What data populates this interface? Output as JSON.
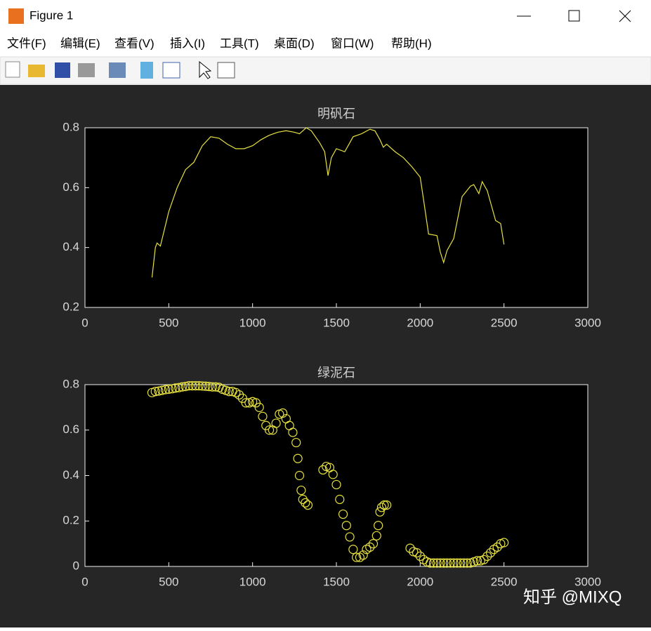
{
  "window": {
    "title": "Figure 1"
  },
  "menu": [
    "文件(F)",
    "编辑(E)",
    "查看(V)",
    "插入(I)",
    "工具(T)",
    "桌面(D)",
    "窗口(W)",
    "帮助(H)"
  ],
  "chart_data": [
    {
      "type": "line",
      "title": "明矾石",
      "color": "#e6e040",
      "grid": false,
      "xlim": [
        0,
        3000
      ],
      "xticks": [
        0,
        500,
        1000,
        1500,
        2000,
        2500,
        3000
      ],
      "ylim": [
        0.2,
        0.8
      ],
      "yticks": [
        0.2,
        0.4,
        0.6,
        0.8
      ],
      "x": [
        400,
        420,
        430,
        450,
        500,
        550,
        600,
        650,
        700,
        750,
        800,
        850,
        900,
        950,
        1000,
        1050,
        1100,
        1150,
        1200,
        1250,
        1280,
        1300,
        1320,
        1350,
        1400,
        1430,
        1450,
        1470,
        1500,
        1550,
        1600,
        1650,
        1700,
        1730,
        1760,
        1780,
        1800,
        1850,
        1900,
        1950,
        2000,
        2020,
        2050,
        2100,
        2120,
        2140,
        2160,
        2200,
        2250,
        2300,
        2320,
        2350,
        2370,
        2400,
        2450,
        2480,
        2500
      ],
      "values": [
        0.3,
        0.4,
        0.415,
        0.405,
        0.52,
        0.6,
        0.66,
        0.685,
        0.74,
        0.77,
        0.765,
        0.745,
        0.73,
        0.73,
        0.74,
        0.76,
        0.775,
        0.785,
        0.79,
        0.785,
        0.78,
        0.79,
        0.8,
        0.79,
        0.75,
        0.72,
        0.64,
        0.7,
        0.73,
        0.72,
        0.77,
        0.78,
        0.795,
        0.79,
        0.76,
        0.735,
        0.745,
        0.72,
        0.7,
        0.67,
        0.635,
        0.56,
        0.445,
        0.44,
        0.385,
        0.35,
        0.39,
        0.43,
        0.57,
        0.605,
        0.61,
        0.58,
        0.62,
        0.59,
        0.49,
        0.48,
        0.41
      ]
    },
    {
      "type": "scatter",
      "title": "绿泥石",
      "color": "#e6e040",
      "grid": false,
      "xlim": [
        0,
        3000
      ],
      "xticks": [
        0,
        500,
        1000,
        1500,
        2000,
        2500,
        3000
      ],
      "ylim": [
        0,
        0.8
      ],
      "yticks": [
        0,
        0.2,
        0.4,
        0.6,
        0.8
      ],
      "x": [
        400,
        420,
        440,
        460,
        480,
        500,
        520,
        540,
        560,
        580,
        600,
        620,
        640,
        660,
        680,
        700,
        720,
        740,
        760,
        780,
        800,
        820,
        840,
        860,
        880,
        900,
        920,
        940,
        960,
        980,
        1000,
        1020,
        1040,
        1060,
        1080,
        1100,
        1120,
        1140,
        1160,
        1180,
        1200,
        1220,
        1240,
        1260,
        1270,
        1280,
        1290,
        1300,
        1315,
        1330,
        1420,
        1440,
        1460,
        1480,
        1500,
        1520,
        1540,
        1560,
        1580,
        1600,
        1620,
        1640,
        1660,
        1680,
        1700,
        1720,
        1740,
        1750,
        1760,
        1770,
        1785,
        1800,
        1940,
        1960,
        1980,
        2000,
        2020,
        2040,
        2060,
        2080,
        2100,
        2120,
        2140,
        2160,
        2180,
        2200,
        2220,
        2240,
        2260,
        2280,
        2300,
        2320,
        2340,
        2360,
        2380,
        2400,
        2420,
        2440,
        2460,
        2480,
        2500
      ],
      "values": [
        0.765,
        0.77,
        0.772,
        0.775,
        0.778,
        0.78,
        0.782,
        0.785,
        0.787,
        0.79,
        0.792,
        0.795,
        0.795,
        0.795,
        0.795,
        0.794,
        0.793,
        0.792,
        0.79,
        0.79,
        0.788,
        0.78,
        0.775,
        0.77,
        0.77,
        0.765,
        0.755,
        0.74,
        0.72,
        0.72,
        0.725,
        0.72,
        0.7,
        0.66,
        0.62,
        0.6,
        0.6,
        0.63,
        0.67,
        0.675,
        0.65,
        0.62,
        0.59,
        0.545,
        0.475,
        0.4,
        0.335,
        0.295,
        0.28,
        0.27,
        0.425,
        0.44,
        0.435,
        0.405,
        0.36,
        0.295,
        0.23,
        0.18,
        0.13,
        0.075,
        0.04,
        0.04,
        0.05,
        0.075,
        0.085,
        0.1,
        0.135,
        0.18,
        0.24,
        0.26,
        0.27,
        0.27,
        0.08,
        0.065,
        0.06,
        0.045,
        0.03,
        0.02,
        0.015,
        0.015,
        0.015,
        0.015,
        0.015,
        0.015,
        0.015,
        0.015,
        0.015,
        0.015,
        0.015,
        0.015,
        0.015,
        0.02,
        0.025,
        0.025,
        0.03,
        0.045,
        0.06,
        0.075,
        0.085,
        0.1,
        0.105
      ]
    }
  ],
  "watermark": "知乎 @MIXQ"
}
